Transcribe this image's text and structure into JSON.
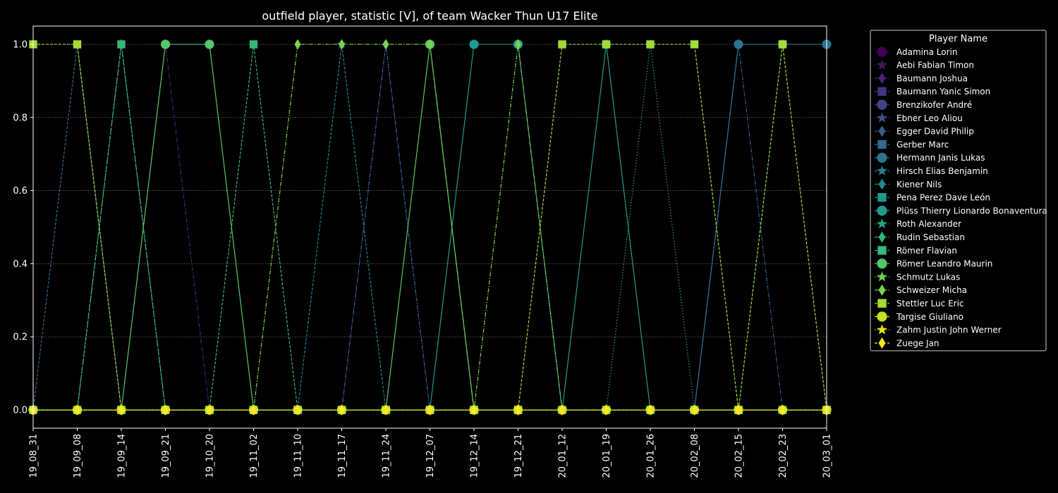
{
  "chart_data": {
    "type": "line",
    "title": "outfield player, statistic [V], of team Wacker Thun U17 Elite",
    "xlabel": "",
    "ylabel": "",
    "ylim": [
      -0.05,
      1.05
    ],
    "yticks": [
      0.0,
      0.2,
      0.4,
      0.6,
      0.8,
      1.0
    ],
    "ytick_labels": [
      "0.0",
      "0.2",
      "0.4",
      "0.6",
      "0.8",
      "1.0"
    ],
    "x": [
      "19_08_31",
      "19_09_08",
      "19_09_14",
      "19_09_21",
      "19_10_20",
      "19_11_02",
      "19_11_10",
      "19_11_17",
      "19_11_24",
      "19_12_07",
      "19_12_14",
      "19_12_21",
      "20_01_12",
      "20_01_19",
      "20_01_26",
      "20_02_08",
      "20_02_15",
      "20_02_23",
      "20_03_01"
    ],
    "grid": "y-dotted",
    "legend": {
      "title": "Player Name",
      "placement": "outside-right"
    },
    "series": [
      {
        "name": "Adamina Lorin",
        "color": "#440154",
        "marker": "circle",
        "dash": "solid",
        "values": [
          0,
          0,
          0,
          0,
          0,
          0,
          0,
          0,
          0,
          0,
          0,
          0,
          0,
          0,
          0,
          0,
          0,
          0,
          0
        ]
      },
      {
        "name": "Aebi Fabian Timon",
        "color": "#471365",
        "marker": "star",
        "dash": "dotted",
        "values": [
          0,
          0,
          0,
          0,
          0,
          0,
          0,
          0,
          0,
          0,
          0,
          0,
          0,
          0,
          0,
          0,
          0,
          0,
          0
        ]
      },
      {
        "name": "Baumann Joshua",
        "color": "#482475",
        "marker": "thin_diamond",
        "dash": "dashdot",
        "values": [
          0,
          0,
          0,
          1,
          0,
          0,
          0,
          0,
          1,
          0,
          0,
          0,
          0,
          0,
          0,
          0,
          0,
          0,
          0
        ]
      },
      {
        "name": "Baumann Yanic Simon",
        "color": "#463480",
        "marker": "square",
        "dash": "dashed",
        "values": [
          0,
          0,
          0,
          0,
          0,
          0,
          0,
          0,
          0,
          0,
          0,
          0,
          0,
          0,
          0,
          0,
          0,
          0,
          0
        ]
      },
      {
        "name": "Brenzikofer André",
        "color": "#414487",
        "marker": "circle",
        "dash": "solid",
        "values": [
          0,
          0,
          0,
          0,
          0,
          0,
          0,
          0,
          0,
          0,
          0,
          0,
          0,
          0,
          0,
          0,
          0,
          0,
          0
        ]
      },
      {
        "name": "Ebner Leo Aliou",
        "color": "#3b528b",
        "marker": "star",
        "dash": "dotted",
        "values": [
          0,
          0,
          0,
          0,
          0,
          0,
          0,
          0,
          0,
          0,
          0,
          0,
          0,
          0,
          0,
          0,
          0,
          0,
          0
        ]
      },
      {
        "name": "Egger David Philip",
        "color": "#355f8d",
        "marker": "thin_diamond",
        "dash": "dashdot",
        "values": [
          0,
          0,
          0,
          0,
          0,
          0,
          0,
          0,
          1,
          0,
          0,
          0,
          0,
          0,
          0,
          0,
          1,
          0,
          0
        ]
      },
      {
        "name": "Gerber Marc",
        "color": "#2f6c8e",
        "marker": "square",
        "dash": "dashed",
        "values": [
          0,
          1,
          0,
          0,
          0,
          0,
          0,
          0,
          0,
          0,
          0,
          0,
          0,
          0,
          0,
          0,
          0,
          0,
          0
        ]
      },
      {
        "name": "Hermann Janis Lukas",
        "color": "#2c728e",
        "marker": "circle",
        "dash": "solid",
        "values": [
          0,
          0,
          0,
          0,
          0,
          0,
          0,
          0,
          0,
          0,
          0,
          0,
          0,
          0,
          0,
          0,
          1,
          1,
          1
        ]
      },
      {
        "name": "Hirsch Elias Benjamin",
        "color": "#287d8e",
        "marker": "star",
        "dash": "dashed",
        "values": [
          0,
          0,
          0,
          0,
          0,
          0,
          0,
          1,
          0,
          0,
          0,
          0,
          0,
          0,
          0,
          0,
          0,
          0,
          0
        ]
      },
      {
        "name": "Kiener Nils",
        "color": "#25858e",
        "marker": "thin_diamond",
        "dash": "dashdot",
        "values": [
          0,
          0,
          0,
          0,
          0,
          0,
          0,
          0,
          0,
          0,
          0,
          0,
          0,
          0,
          0,
          0,
          0,
          0,
          0
        ]
      },
      {
        "name": "Pena Perez Dave León",
        "color": "#1f988b",
        "marker": "square",
        "dash": "dashed",
        "values": [
          0,
          0,
          0,
          0,
          0,
          0,
          0,
          0,
          0,
          0,
          0,
          0,
          0,
          0,
          0,
          0,
          0,
          0,
          0
        ]
      },
      {
        "name": "Plüss Thierry Lionardo Bonaventura",
        "color": "#1e9b8a",
        "marker": "circle",
        "dash": "solid",
        "values": [
          0,
          0,
          0,
          0,
          0,
          0,
          0,
          0,
          0,
          0,
          1,
          1,
          0,
          1,
          0,
          0,
          0,
          0,
          0
        ]
      },
      {
        "name": "Roth Alexander",
        "color": "#22a785",
        "marker": "star",
        "dash": "dotted",
        "values": [
          0,
          0,
          0,
          0,
          0,
          0,
          0,
          0,
          0,
          0,
          0,
          0,
          0,
          0,
          1,
          0,
          0,
          0,
          0
        ]
      },
      {
        "name": "Rudin Sebastian",
        "color": "#2eb37c",
        "marker": "thin_diamond",
        "dash": "dashdot",
        "values": [
          0,
          0,
          1,
          0,
          0,
          0,
          0,
          0,
          0,
          0,
          0,
          0,
          0,
          0,
          0,
          0,
          0,
          0,
          0
        ]
      },
      {
        "name": "Römer Flavian",
        "color": "#35b779",
        "marker": "square",
        "dash": "dashed",
        "values": [
          0,
          0,
          1,
          0,
          0,
          1,
          0,
          0,
          0,
          0,
          0,
          0,
          0,
          0,
          0,
          0,
          0,
          0,
          0
        ]
      },
      {
        "name": "Römer Leandro Maurin",
        "color": "#54c568",
        "marker": "circle",
        "dash": "solid",
        "values": [
          0,
          0,
          0,
          1,
          1,
          0,
          0,
          0,
          0,
          1,
          0,
          0,
          0,
          0,
          0,
          0,
          0,
          0,
          0
        ]
      },
      {
        "name": "Schmutz Lukas",
        "color": "#6ece58",
        "marker": "star",
        "dash": "dotted",
        "values": [
          0,
          0,
          0,
          0,
          0,
          0,
          0,
          0,
          0,
          0,
          0,
          0,
          0,
          0,
          0,
          0,
          0,
          0,
          0
        ]
      },
      {
        "name": "Schweizer Micha",
        "color": "#7ad151",
        "marker": "thin_diamond",
        "dash": "dashdot",
        "values": [
          0,
          0,
          0,
          0,
          0,
          0,
          1,
          1,
          1,
          1,
          0,
          1,
          0,
          0,
          0,
          0,
          0,
          0,
          0
        ]
      },
      {
        "name": "Stettler Luc Eric",
        "color": "#a5db36",
        "marker": "square",
        "dash": "dashed",
        "values": [
          1,
          1,
          0,
          0,
          0,
          0,
          0,
          0,
          0,
          0,
          0,
          0,
          1,
          1,
          1,
          1,
          0,
          1,
          0
        ]
      },
      {
        "name": "Targise Giuliano",
        "color": "#c2df23",
        "marker": "circle",
        "dash": "solid",
        "values": [
          0,
          0,
          0,
          0,
          0,
          0,
          0,
          0,
          0,
          0,
          0,
          0,
          0,
          0,
          0,
          0,
          0,
          0,
          0
        ]
      },
      {
        "name": "Zahm Justin John Werner",
        "color": "#dfe318",
        "marker": "star",
        "dash": "dotted",
        "values": [
          0,
          0,
          0,
          0,
          0,
          0,
          0,
          0,
          0,
          0,
          0,
          0,
          0,
          0,
          0,
          0,
          0,
          0,
          0
        ]
      },
      {
        "name": "Zuege Jan",
        "color": "#fde725",
        "marker": "thin_diamond",
        "dash": "dashed",
        "values": [
          0,
          0,
          0,
          0,
          0,
          0,
          0,
          0,
          0,
          0,
          0,
          0,
          0,
          0,
          0,
          0,
          0,
          0,
          0
        ]
      }
    ]
  }
}
